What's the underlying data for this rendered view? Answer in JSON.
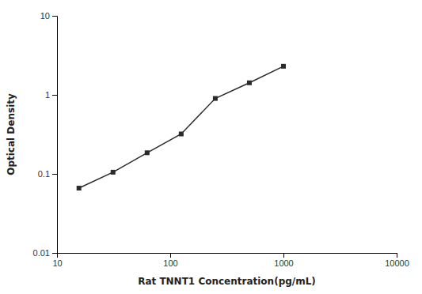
{
  "chart_data": {
    "type": "line",
    "x": [
      15.625,
      31.25,
      62.5,
      125,
      250,
      500,
      1000
    ],
    "values": [
      0.066,
      0.105,
      0.185,
      0.32,
      0.9,
      1.42,
      2.3
    ],
    "xlabel": "Rat TNNT1 Concentration(pg/mL)",
    "ylabel": "Optical Density",
    "xlim": [
      10,
      10000
    ],
    "ylim": [
      0.01,
      10
    ],
    "xticks": [
      10,
      100,
      1000,
      10000
    ],
    "yticks": [
      0.01,
      0.1,
      1,
      10
    ],
    "log": true,
    "grid": false,
    "color": "#2b2b2b",
    "marker": "square"
  }
}
